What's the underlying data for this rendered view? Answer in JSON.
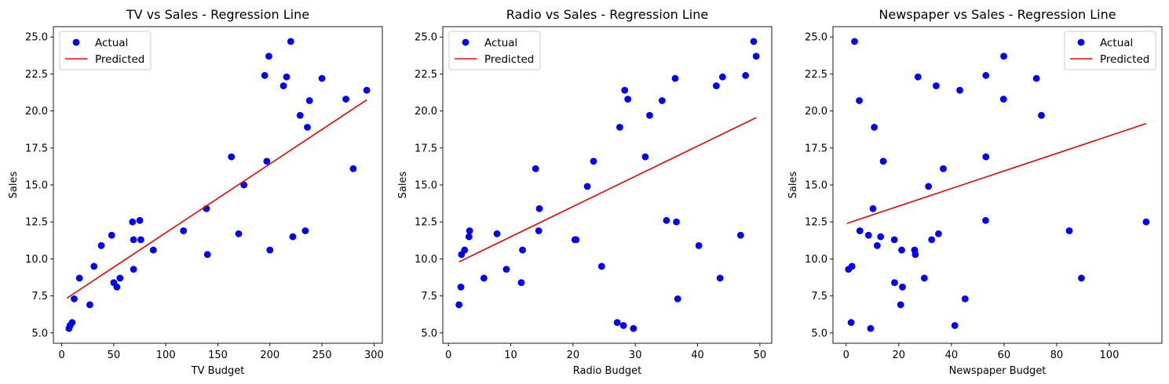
{
  "chart_data": [
    {
      "type": "scatter",
      "title": "TV vs Sales - Regression Line",
      "xlabel": "TV Budget",
      "ylabel": "Sales",
      "xlim": [
        -8,
        308
      ],
      "ylim": [
        4.3,
        25.7
      ],
      "xticks": [
        0,
        50,
        100,
        150,
        200,
        250,
        300
      ],
      "yticks": [
        5.0,
        7.5,
        10.0,
        12.5,
        15.0,
        17.5,
        20.0,
        22.5,
        25.0
      ],
      "xtick_labels": [
        "0",
        "50",
        "100",
        "150",
        "200",
        "250",
        "300"
      ],
      "ytick_labels": [
        "5.0",
        "7.5",
        "10.0",
        "12.5",
        "15.0",
        "17.5",
        "20.0",
        "22.5",
        "25.0"
      ],
      "grid": false,
      "legend": "upper-left",
      "series": [
        {
          "name": "Actual",
          "kind": "scatter",
          "color": "#0000ff",
          "points": [
            [
              7,
              5.3
            ],
            [
              8,
              5.5
            ],
            [
              10,
              5.7
            ],
            [
              12,
              7.3
            ],
            [
              17,
              8.7
            ],
            [
              27,
              6.9
            ],
            [
              31,
              9.5
            ],
            [
              38,
              10.9
            ],
            [
              48,
              11.6
            ],
            [
              50,
              8.4
            ],
            [
              53,
              8.1
            ],
            [
              56,
              8.7
            ],
            [
              68,
              12.5
            ],
            [
              69,
              9.3
            ],
            [
              69,
              11.3
            ],
            [
              75,
              12.6
            ],
            [
              76,
              11.3
            ],
            [
              88,
              10.6
            ],
            [
              117,
              11.9
            ],
            [
              139,
              13.4
            ],
            [
              140,
              10.3
            ],
            [
              163,
              16.9
            ],
            [
              170,
              11.7
            ],
            [
              175,
              15.0
            ],
            [
              195,
              22.4
            ],
            [
              197,
              16.6
            ],
            [
              199,
              23.7
            ],
            [
              200,
              10.6
            ],
            [
              213,
              21.7
            ],
            [
              216,
              22.3
            ],
            [
              220,
              24.7
            ],
            [
              222,
              11.5
            ],
            [
              229,
              19.7
            ],
            [
              234,
              11.9
            ],
            [
              236,
              18.9
            ],
            [
              238,
              20.7
            ],
            [
              250,
              22.2
            ],
            [
              273,
              20.8
            ],
            [
              280,
              16.1
            ],
            [
              293,
              21.4
            ]
          ]
        },
        {
          "name": "Predicted",
          "kind": "line",
          "color": "#ff0000",
          "points": [
            [
              5,
              7.35
            ],
            [
              293,
              20.75
            ]
          ]
        }
      ]
    },
    {
      "type": "scatter",
      "title": "Radio vs Sales - Regression Line",
      "xlabel": "Radio Budget",
      "ylabel": "Sales",
      "xlim": [
        -0.9,
        51.9
      ],
      "ylim": [
        4.3,
        25.7
      ],
      "xticks": [
        0,
        10,
        20,
        30,
        40,
        50
      ],
      "yticks": [
        5.0,
        7.5,
        10.0,
        12.5,
        15.0,
        17.5,
        20.0,
        22.5,
        25.0
      ],
      "xtick_labels": [
        "0",
        "10",
        "20",
        "30",
        "40",
        "50"
      ],
      "ytick_labels": [
        "5.0",
        "7.5",
        "10.0",
        "12.5",
        "15.0",
        "17.5",
        "20.0",
        "22.5",
        "25.0"
      ],
      "grid": false,
      "legend": "upper-left",
      "series": [
        {
          "name": "Actual",
          "kind": "scatter",
          "color": "#0000ff",
          "points": [
            [
              1.7,
              6.9
            ],
            [
              2.0,
              8.1
            ],
            [
              2.1,
              10.3
            ],
            [
              2.6,
              10.6
            ],
            [
              3.3,
              11.5
            ],
            [
              3.4,
              11.9
            ],
            [
              5.7,
              8.7
            ],
            [
              7.8,
              11.7
            ],
            [
              9.3,
              9.3
            ],
            [
              11.7,
              8.4
            ],
            [
              11.9,
              10.6
            ],
            [
              14.0,
              16.1
            ],
            [
              14.5,
              11.9
            ],
            [
              14.6,
              13.4
            ],
            [
              20.3,
              11.3
            ],
            [
              20.5,
              11.3
            ],
            [
              22.3,
              14.9
            ],
            [
              23.3,
              16.6
            ],
            [
              24.6,
              9.5
            ],
            [
              27.1,
              5.7
            ],
            [
              27.5,
              18.9
            ],
            [
              28.1,
              5.5
            ],
            [
              28.3,
              21.4
            ],
            [
              28.8,
              20.8
            ],
            [
              29.7,
              5.3
            ],
            [
              31.6,
              16.9
            ],
            [
              32.3,
              19.7
            ],
            [
              34.3,
              20.7
            ],
            [
              35.0,
              12.6
            ],
            [
              36.4,
              22.2
            ],
            [
              36.6,
              12.5
            ],
            [
              36.8,
              7.3
            ],
            [
              40.2,
              10.9
            ],
            [
              43.0,
              21.7
            ],
            [
              43.6,
              8.7
            ],
            [
              44.0,
              22.3
            ],
            [
              46.9,
              11.6
            ],
            [
              47.7,
              22.4
            ],
            [
              49.0,
              24.7
            ],
            [
              49.4,
              23.7
            ]
          ]
        },
        {
          "name": "Predicted",
          "kind": "line",
          "color": "#ff0000",
          "points": [
            [
              1.7,
              9.8
            ],
            [
              49.4,
              19.55
            ]
          ]
        }
      ]
    },
    {
      "type": "scatter",
      "title": "Newspaper vs Sales - Regression Line",
      "xlabel": "Newspaper Budget",
      "ylabel": "Sales",
      "xlim": [
        -5,
        120
      ],
      "ylim": [
        4.3,
        25.7
      ],
      "xticks": [
        0,
        20,
        40,
        60,
        80,
        100
      ],
      "yticks": [
        5.0,
        7.5,
        10.0,
        12.5,
        15.0,
        17.5,
        20.0,
        22.5,
        25.0
      ],
      "xtick_labels": [
        "0",
        "20",
        "40",
        "60",
        "80",
        "100"
      ],
      "ytick_labels": [
        "5.0",
        "7.5",
        "10.0",
        "12.5",
        "15.0",
        "17.5",
        "20.0",
        "22.5",
        "25.0"
      ],
      "grid": false,
      "legend": "upper-right",
      "series": [
        {
          "name": "Actual",
          "kind": "scatter",
          "color": "#0000ff",
          "points": [
            [
              0.9,
              9.3
            ],
            [
              1.9,
              5.7
            ],
            [
              2.2,
              9.5
            ],
            [
              3.2,
              24.7
            ],
            [
              5.0,
              20.7
            ],
            [
              5.2,
              11.9
            ],
            [
              8.5,
              11.6
            ],
            [
              9.3,
              5.3
            ],
            [
              10.2,
              13.4
            ],
            [
              10.7,
              18.9
            ],
            [
              11.8,
              10.9
            ],
            [
              13.1,
              11.5
            ],
            [
              14.1,
              16.6
            ],
            [
              18.3,
              11.3
            ],
            [
              18.4,
              8.4
            ],
            [
              20.7,
              6.9
            ],
            [
              21.1,
              10.6
            ],
            [
              21.4,
              8.1
            ],
            [
              26.0,
              10.6
            ],
            [
              26.3,
              10.3
            ],
            [
              27.3,
              22.3
            ],
            [
              29.7,
              8.7
            ],
            [
              31.3,
              14.9
            ],
            [
              32.5,
              11.3
            ],
            [
              34.2,
              21.7
            ],
            [
              35.1,
              11.7
            ],
            [
              36.9,
              16.1
            ],
            [
              41.3,
              5.5
            ],
            [
              43.2,
              21.4
            ],
            [
              45.2,
              7.3
            ],
            [
              53.0,
              12.6
            ],
            [
              53.1,
              16.9
            ],
            [
              53.1,
              22.4
            ],
            [
              59.8,
              20.8
            ],
            [
              59.9,
              23.7
            ],
            [
              72.3,
              22.2
            ],
            [
              74.2,
              19.7
            ],
            [
              84.8,
              11.9
            ],
            [
              89.4,
              8.7
            ],
            [
              114.0,
              12.5
            ]
          ]
        },
        {
          "name": "Predicted",
          "kind": "line",
          "color": "#ff0000",
          "points": [
            [
              0.3,
              12.4
            ],
            [
              114.0,
              19.15
            ]
          ]
        }
      ]
    }
  ]
}
